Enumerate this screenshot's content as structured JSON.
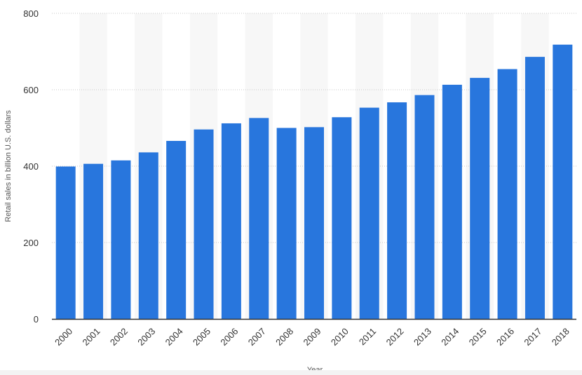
{
  "chart_data": {
    "type": "bar",
    "xlabel": "Year",
    "ylabel": "Retail sales in billion U.S. dollars",
    "categories": [
      "2000",
      "2001",
      "2002",
      "2003",
      "2004",
      "2005",
      "2006",
      "2007",
      "2008",
      "2009",
      "2010",
      "2011",
      "2012",
      "2013",
      "2014",
      "2015",
      "2016",
      "2017",
      "2018"
    ],
    "values": [
      399,
      406,
      415,
      436,
      466,
      496,
      512,
      526,
      500,
      502,
      528,
      553,
      567,
      586,
      613,
      631,
      654,
      686,
      718
    ],
    "ylim": [
      0,
      800
    ],
    "yticks": [
      0,
      200,
      400,
      600,
      800
    ],
    "grid": true,
    "colors": {
      "bar": "#2876dd",
      "band": "#f7f7f7",
      "grid": "#c9c9c9",
      "axis": "#333333"
    }
  }
}
